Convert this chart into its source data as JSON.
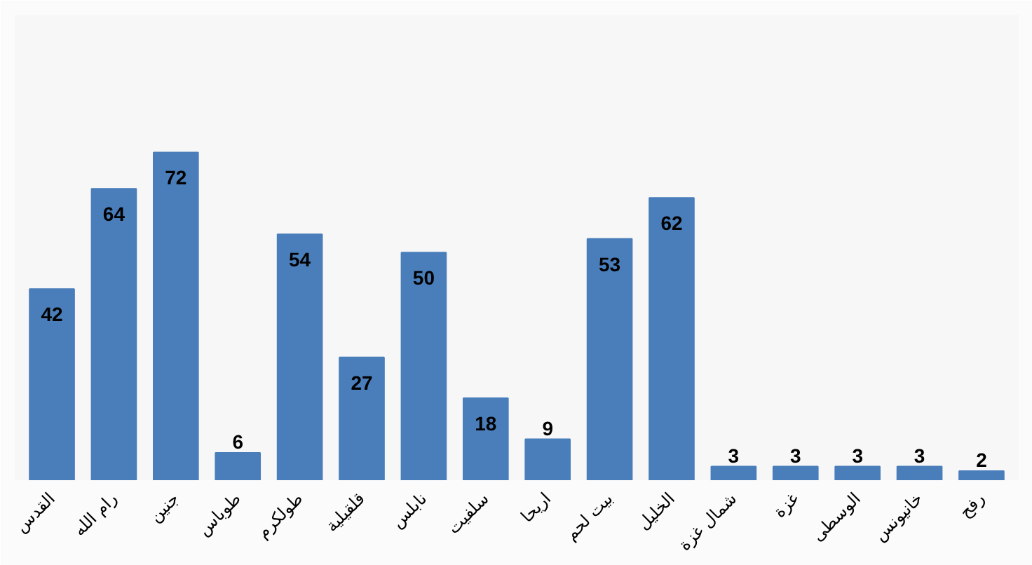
{
  "chart_data": {
    "type": "bar",
    "categories": [
      "القدس",
      "رام الله",
      "جنين",
      "طوباس",
      "طولكرم",
      "قلقيلية",
      "نابلس",
      "سلفيت",
      "اريحا",
      "بيت لحم",
      "الخليل",
      "شمال غزة",
      "غزة",
      "الوسطى",
      "خانيونس",
      "رفح"
    ],
    "values": [
      42,
      64,
      72,
      6,
      54,
      27,
      50,
      18,
      9,
      53,
      62,
      3,
      3,
      3,
      3,
      2
    ],
    "color": "#4a7ebb",
    "data_labels": true,
    "grid": false
  }
}
